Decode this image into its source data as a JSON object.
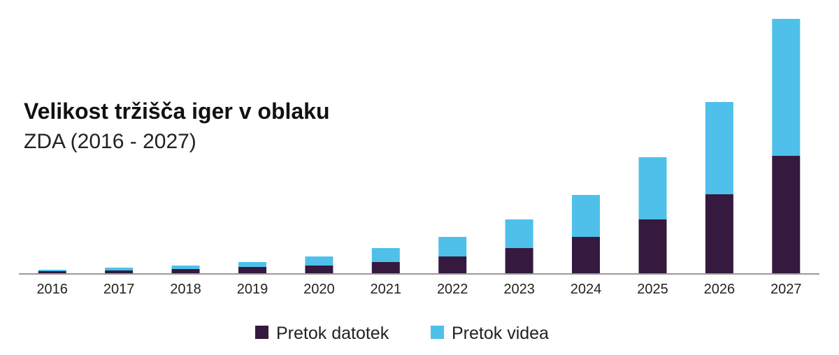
{
  "chart_data": {
    "type": "bar",
    "stacked": true,
    "title": "Velikost tržišča iger v oblaku",
    "subtitle": "ZDA (2016 - 2027)",
    "categories": [
      "2016",
      "2017",
      "2018",
      "2019",
      "2020",
      "2021",
      "2022",
      "2023",
      "2024",
      "2025",
      "2026",
      "2027"
    ],
    "series": [
      {
        "name": "Pretok datotek",
        "color": "#35193f",
        "values": [
          3,
          4,
          6,
          9,
          11,
          16,
          24,
          36,
          52,
          77,
          113,
          168
        ]
      },
      {
        "name": "Pretok videa",
        "color": "#4ec0ea",
        "values": [
          2,
          4,
          5,
          7,
          13,
          20,
          28,
          41,
          60,
          89,
          132,
          196
        ]
      }
    ],
    "ylim": [
      0,
      366
    ],
    "legend_position": "bottom",
    "grid": false
  }
}
